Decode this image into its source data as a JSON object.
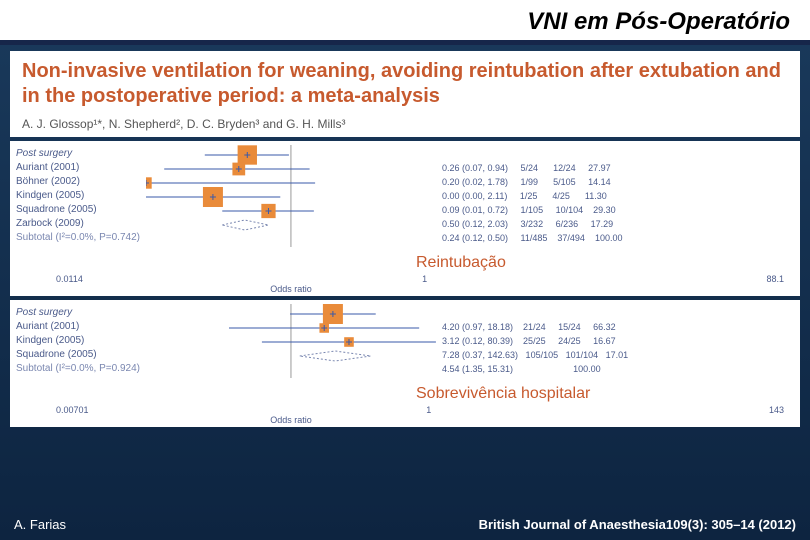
{
  "slide": {
    "title": "VNI em Pós-Operatório",
    "footer_left": "A. Farias",
    "footer_right": "British Journal of Anaesthesia109(3): 305–14 (2012)"
  },
  "paper": {
    "title": "Non-invasive ventilation for weaning, avoiding reintubation after extubation and in the postoperative period: a meta-analysis",
    "authors": "A. J. Glossop¹*, N. Shepherd², D. C. Bryden³ and G. H. Mills³"
  },
  "callouts": {
    "reintubation": "Reintubação",
    "survival": "Sobrevivência hospitalar"
  },
  "plot1": {
    "group_label": "Post surgery",
    "rows": [
      {
        "label": "Auriant (2001)",
        "or": 0.26,
        "lo": 0.07,
        "hi": 0.94,
        "n_i": "5/24",
        "n_c": "12/24",
        "w": "27.97"
      },
      {
        "label": "Böhner (2002)",
        "or": 0.2,
        "lo": 0.02,
        "hi": 1.78,
        "n_i": "1/99",
        "n_c": "5/105",
        "w": "14.14"
      },
      {
        "label": "Kindgen (2005)",
        "or": 0.0,
        "lo": 0.0,
        "hi": 2.11,
        "n_i": "1/25",
        "n_c": "4/25",
        "w": "11.30"
      },
      {
        "label": "Squadrone (2005)",
        "or": 0.09,
        "lo": 0.01,
        "hi": 0.72,
        "n_i": "1/105",
        "n_c": "10/104",
        "w": "29.30"
      },
      {
        "label": "Zarbock (2009)",
        "or": 0.5,
        "lo": 0.12,
        "hi": 2.03,
        "n_i": "3/232",
        "n_c": "6/236",
        "w": "17.29"
      }
    ],
    "subtotal": {
      "label": "Subtotal (I²=0.0%, P=0.742)",
      "or": 0.24,
      "lo": 0.12,
      "hi": 0.5,
      "n_i": "11/485",
      "n_c": "37/494",
      "w": "100.00"
    },
    "axis": {
      "min": 0.0114,
      "mid": 1,
      "max": 88.1,
      "label": "Odds ratio"
    },
    "style": {
      "marker_fill": "#e98b3a",
      "marker_stroke": "#3a5aaa",
      "ci_line": "#3a5aaa",
      "diamond_stroke": "#7a87b0",
      "vline": "#999"
    }
  },
  "plot2": {
    "group_label": "Post surgery",
    "rows": [
      {
        "label": "Auriant (2001)",
        "or": 4.2,
        "lo": 0.97,
        "hi": 18.18,
        "n_i": "21/24",
        "n_c": "15/24",
        "w": "66.32"
      },
      {
        "label": "Kindgen (2005)",
        "or": 3.12,
        "lo": 0.12,
        "hi": 80.39,
        "n_i": "25/25",
        "n_c": "24/25",
        "w": "16.67"
      },
      {
        "label": "Squadrone (2005)",
        "or": 7.28,
        "lo": 0.37,
        "hi": 142.63,
        "n_i": "105/105",
        "n_c": "101/104",
        "w": "17.01"
      }
    ],
    "subtotal": {
      "label": "Subtotal (I²=0.0%, P=0.924)",
      "or": 4.54,
      "lo": 1.35,
      "hi": 15.31,
      "n_i": "",
      "n_c": "",
      "w": "100.00"
    },
    "axis": {
      "min": 0.00701,
      "mid": 1,
      "max": 143,
      "label": "Odds ratio"
    },
    "style": {
      "marker_fill": "#e98b3a",
      "marker_stroke": "#3a5aaa",
      "ci_line": "#3a5aaa",
      "diamond_stroke": "#7a87b0",
      "vline": "#999"
    }
  }
}
